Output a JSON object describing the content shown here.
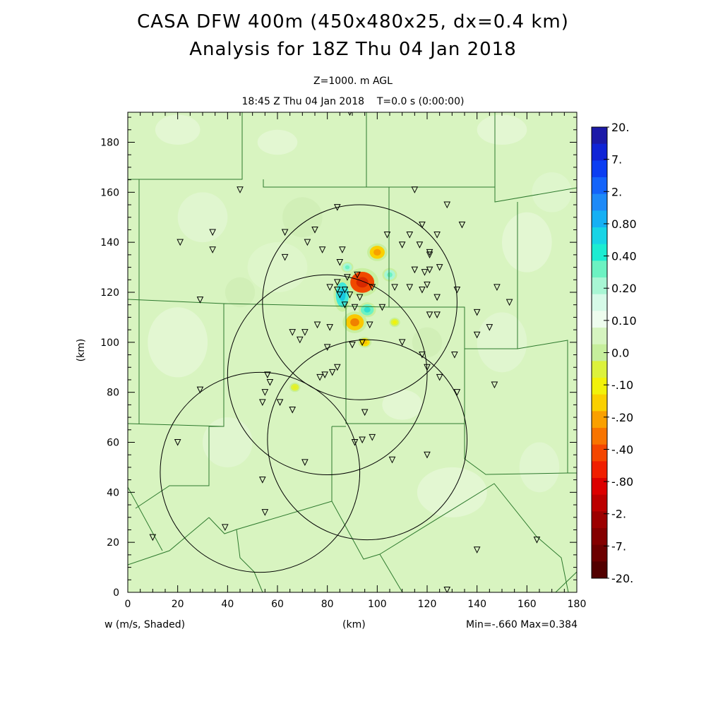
{
  "header": {
    "title_line1": "CASA DFW 400m (450x480x25, dx=0.4 km)",
    "title_line2": "Analysis for 18Z Thu 04 Jan 2018",
    "level": "Z=1000. m AGL",
    "time": "18:45 Z Thu 04 Jan 2018    T=0.0 s (0:00:00)"
  },
  "footer": {
    "field": "w (m/s, Shaded)",
    "x_unit": "(km)",
    "minmax": "Min=-.660 Max=0.384"
  },
  "axes": {
    "x_label": "(km)",
    "y_label": "(km)",
    "x_range": [
      0,
      180
    ],
    "y_range": [
      0,
      192
    ],
    "x_ticks": [
      "0",
      "20",
      "40",
      "60",
      "80",
      "100",
      "120",
      "140",
      "160",
      "180"
    ],
    "y_ticks": [
      "0",
      "20",
      "40",
      "60",
      "80",
      "100",
      "120",
      "140",
      "160",
      "180"
    ]
  },
  "colorbar": {
    "labels": [
      "20.",
      "7.",
      "2.",
      "0.80",
      "0.40",
      "0.20",
      "0.10",
      "0.0",
      "-.10",
      "-.20",
      "-.40",
      "-.80",
      "-2.",
      "-7.",
      "-20."
    ],
    "colors": [
      "#1c1aa8",
      "#1024d6",
      "#0c3ef2",
      "#1464fa",
      "#1e8af8",
      "#16b0f4",
      "#18d4e6",
      "#1cecd2",
      "#6cf2c2",
      "#a8f6d4",
      "#d6fae8",
      "#eefcee",
      "#d6f4c0",
      "#c6ee9c",
      "#dcf23c",
      "#f2f20a",
      "#fad000",
      "#faa000",
      "#f87400",
      "#f44600",
      "#f01e00",
      "#dc0000",
      "#bc0000",
      "#9c0000",
      "#840000",
      "#6c0000",
      "#520000"
    ]
  },
  "colors": {
    "background_field": "#d8f4c0",
    "radar_ring": "#000000",
    "county_line": "#2e7a2e"
  },
  "radars": [
    {
      "x": 93,
      "y": 116,
      "r": 39
    },
    {
      "x": 80,
      "y": 87,
      "r": 40
    },
    {
      "x": 53,
      "y": 48,
      "r": 40
    },
    {
      "x": 96,
      "y": 61,
      "r": 40
    }
  ],
  "stations": [
    [
      89,
      192
    ],
    [
      45,
      161
    ],
    [
      115,
      161
    ],
    [
      128,
      155
    ],
    [
      84,
      154
    ],
    [
      63,
      144
    ],
    [
      75,
      145
    ],
    [
      34,
      144
    ],
    [
      104,
      143
    ],
    [
      113,
      143
    ],
    [
      118,
      147
    ],
    [
      124,
      143
    ],
    [
      134,
      147
    ],
    [
      21,
      140
    ],
    [
      72,
      140
    ],
    [
      110,
      139
    ],
    [
      78,
      137
    ],
    [
      86,
      137
    ],
    [
      117,
      139
    ],
    [
      121,
      136
    ],
    [
      121,
      135
    ],
    [
      34,
      137
    ],
    [
      63,
      134
    ],
    [
      85,
      132
    ],
    [
      121,
      129
    ],
    [
      115,
      129
    ],
    [
      119,
      128
    ],
    [
      125,
      130
    ],
    [
      88,
      126
    ],
    [
      92,
      127
    ],
    [
      84,
      124
    ],
    [
      81,
      122
    ],
    [
      84,
      121
    ],
    [
      87,
      121
    ],
    [
      85,
      119
    ],
    [
      89,
      119
    ],
    [
      93,
      118
    ],
    [
      98,
      122
    ],
    [
      107,
      122
    ],
    [
      113,
      122
    ],
    [
      120,
      123
    ],
    [
      118,
      121
    ],
    [
      124,
      118
    ],
    [
      132,
      121
    ],
    [
      148,
      122
    ],
    [
      153,
      116
    ],
    [
      29,
      117
    ],
    [
      87,
      115
    ],
    [
      91,
      114
    ],
    [
      102,
      114
    ],
    [
      140,
      112
    ],
    [
      121,
      111
    ],
    [
      124,
      111
    ],
    [
      76,
      107
    ],
    [
      81,
      106
    ],
    [
      97,
      107
    ],
    [
      71,
      104
    ],
    [
      66,
      104
    ],
    [
      69,
      101
    ],
    [
      145,
      106
    ],
    [
      140,
      103
    ],
    [
      110,
      100
    ],
    [
      94,
      100
    ],
    [
      90,
      99
    ],
    [
      80,
      98
    ],
    [
      118,
      95
    ],
    [
      131,
      95
    ],
    [
      120,
      90
    ],
    [
      84,
      90
    ],
    [
      82,
      88
    ],
    [
      79,
      87
    ],
    [
      77,
      86
    ],
    [
      125,
      86
    ],
    [
      56,
      87
    ],
    [
      57,
      84
    ],
    [
      147,
      83
    ],
    [
      29,
      81
    ],
    [
      55,
      80
    ],
    [
      54,
      76
    ],
    [
      61,
      76
    ],
    [
      66,
      73
    ],
    [
      132,
      80
    ],
    [
      95,
      72
    ],
    [
      20,
      60
    ],
    [
      91,
      60
    ],
    [
      94,
      61
    ],
    [
      98,
      62
    ],
    [
      120,
      55
    ],
    [
      71,
      52
    ],
    [
      106,
      53
    ],
    [
      54,
      45
    ],
    [
      39,
      26
    ],
    [
      55,
      32
    ],
    [
      10,
      22
    ],
    [
      140,
      17
    ],
    [
      164,
      21
    ],
    [
      128,
      1
    ]
  ],
  "anomalies": [
    {
      "x": 94,
      "y": 124,
      "rx": 4.8,
      "ry": 4.2,
      "color": "#f04800",
      "core": "#d82800"
    },
    {
      "x": 91,
      "y": 108,
      "rx": 3.6,
      "ry": 3.2,
      "color": "#fac800",
      "core": "#f08000"
    },
    {
      "x": 100,
      "y": 136,
      "rx": 3.0,
      "ry": 2.6,
      "color": "#fad000",
      "core": "#f8a000"
    },
    {
      "x": 95,
      "y": 100,
      "rx": 2.0,
      "ry": 1.6,
      "color": "#f8e000",
      "core": "#fac000"
    },
    {
      "x": 86,
      "y": 119,
      "rx": 2.6,
      "ry": 5.0,
      "color": "#40e8d8",
      "core": "#18c8e0"
    },
    {
      "x": 96,
      "y": 113,
      "rx": 2.6,
      "ry": 2.2,
      "color": "#6cf2c2",
      "core": "#30e0d0"
    },
    {
      "x": 105,
      "y": 127,
      "rx": 2.2,
      "ry": 2.0,
      "color": "#a8f6d4",
      "core": "#6cf2c2"
    },
    {
      "x": 88,
      "y": 130,
      "rx": 1.8,
      "ry": 1.6,
      "color": "#a8f6d4",
      "core": "#6cf2c2"
    },
    {
      "x": 107,
      "y": 108,
      "rx": 1.6,
      "ry": 1.4,
      "color": "#dcf23c",
      "core": "#f2f20a"
    },
    {
      "x": 67,
      "y": 82,
      "rx": 1.6,
      "ry": 1.4,
      "color": "#dcf23c",
      "core": "#e8f020"
    }
  ]
}
